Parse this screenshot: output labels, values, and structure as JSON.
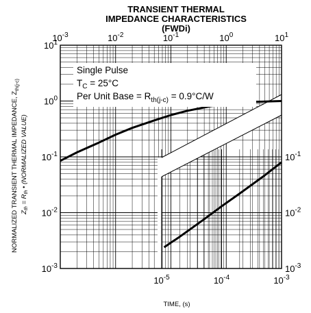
{
  "chart_data": {
    "type": "line",
    "title_lines": [
      "TRANSIENT THERMAL",
      "IMPEDANCE CHARACTERISTICS",
      "(FWDi)"
    ],
    "xlabel": "TIME, (s)",
    "ylabel_main": "NORMALIZED TRANSIENT THERMAL IMPEDANCE, Z",
    "ylabel_main_sub": "th(j-c)",
    "ylabel_sub": {
      "z": "Z",
      "z_sub": "th",
      "eq": " = R",
      "r_sub": "th",
      "rest": " • (NORMALIZED VALUE)"
    },
    "annotations": {
      "line1": "Single Pulse",
      "line2_main": "T",
      "line2_sub": "C",
      "line2_rest": " = 25°C",
      "line3_main": "Per Unit Base = R",
      "line3_sub": "th(j-c)",
      "line3_rest": " = 0.9°C/W"
    },
    "top_axis": {
      "range": [
        0.001,
        10
      ],
      "ticks": [
        {
          "v": 0.001,
          "base": "10",
          "exp": "-3"
        },
        {
          "v": 0.01,
          "base": "10",
          "exp": "-2"
        },
        {
          "v": 0.1,
          "base": "10",
          "exp": "-1"
        },
        {
          "v": 1,
          "base": "10",
          "exp": "0"
        },
        {
          "v": 10,
          "base": "10",
          "exp": "1"
        }
      ]
    },
    "bottom_axis": {
      "range": [
        1e-05,
        0.001
      ],
      "ticks": [
        {
          "v": 1e-05,
          "base": "10",
          "exp": "-5"
        },
        {
          "v": 0.0001,
          "base": "10",
          "exp": "-4"
        },
        {
          "v": 0.001,
          "base": "10",
          "exp": "-3"
        }
      ]
    },
    "left_axis": {
      "range": [
        0.001,
        10
      ],
      "ticks": [
        {
          "v": 0.001,
          "base": "10",
          "exp": "-3"
        },
        {
          "v": 0.01,
          "base": "10",
          "exp": "-2"
        },
        {
          "v": 0.1,
          "base": "10",
          "exp": "-1"
        },
        {
          "v": 1,
          "base": "10",
          "exp": "0"
        },
        {
          "v": 10,
          "base": "10",
          "exp": "1"
        }
      ]
    },
    "right_axis": {
      "range": [
        0.001,
        10
      ],
      "ticks": [
        {
          "v": 0.001,
          "base": "10",
          "exp": "-3"
        },
        {
          "v": 0.01,
          "base": "10",
          "exp": "-2"
        },
        {
          "v": 0.1,
          "base": "10",
          "exp": "-1"
        }
      ]
    },
    "series": [
      {
        "axes": "top-left",
        "x": [
          0.001,
          0.002,
          0.005,
          0.01,
          0.02,
          0.05,
          0.1,
          0.2,
          0.5,
          1,
          2,
          5,
          10
        ],
        "y": [
          0.085,
          0.12,
          0.18,
          0.25,
          0.33,
          0.45,
          0.56,
          0.67,
          0.8,
          0.88,
          0.94,
          0.98,
          1.0
        ]
      },
      {
        "axes": "bottom-right",
        "x": [
          1.1e-05,
          2e-05,
          5e-05,
          0.0001,
          0.0002,
          0.0005,
          0.001
        ],
        "y": [
          0.0024,
          0.0037,
          0.0075,
          0.013,
          0.022,
          0.045,
          0.08
        ]
      }
    ],
    "grid": true,
    "scale": "log-log"
  }
}
